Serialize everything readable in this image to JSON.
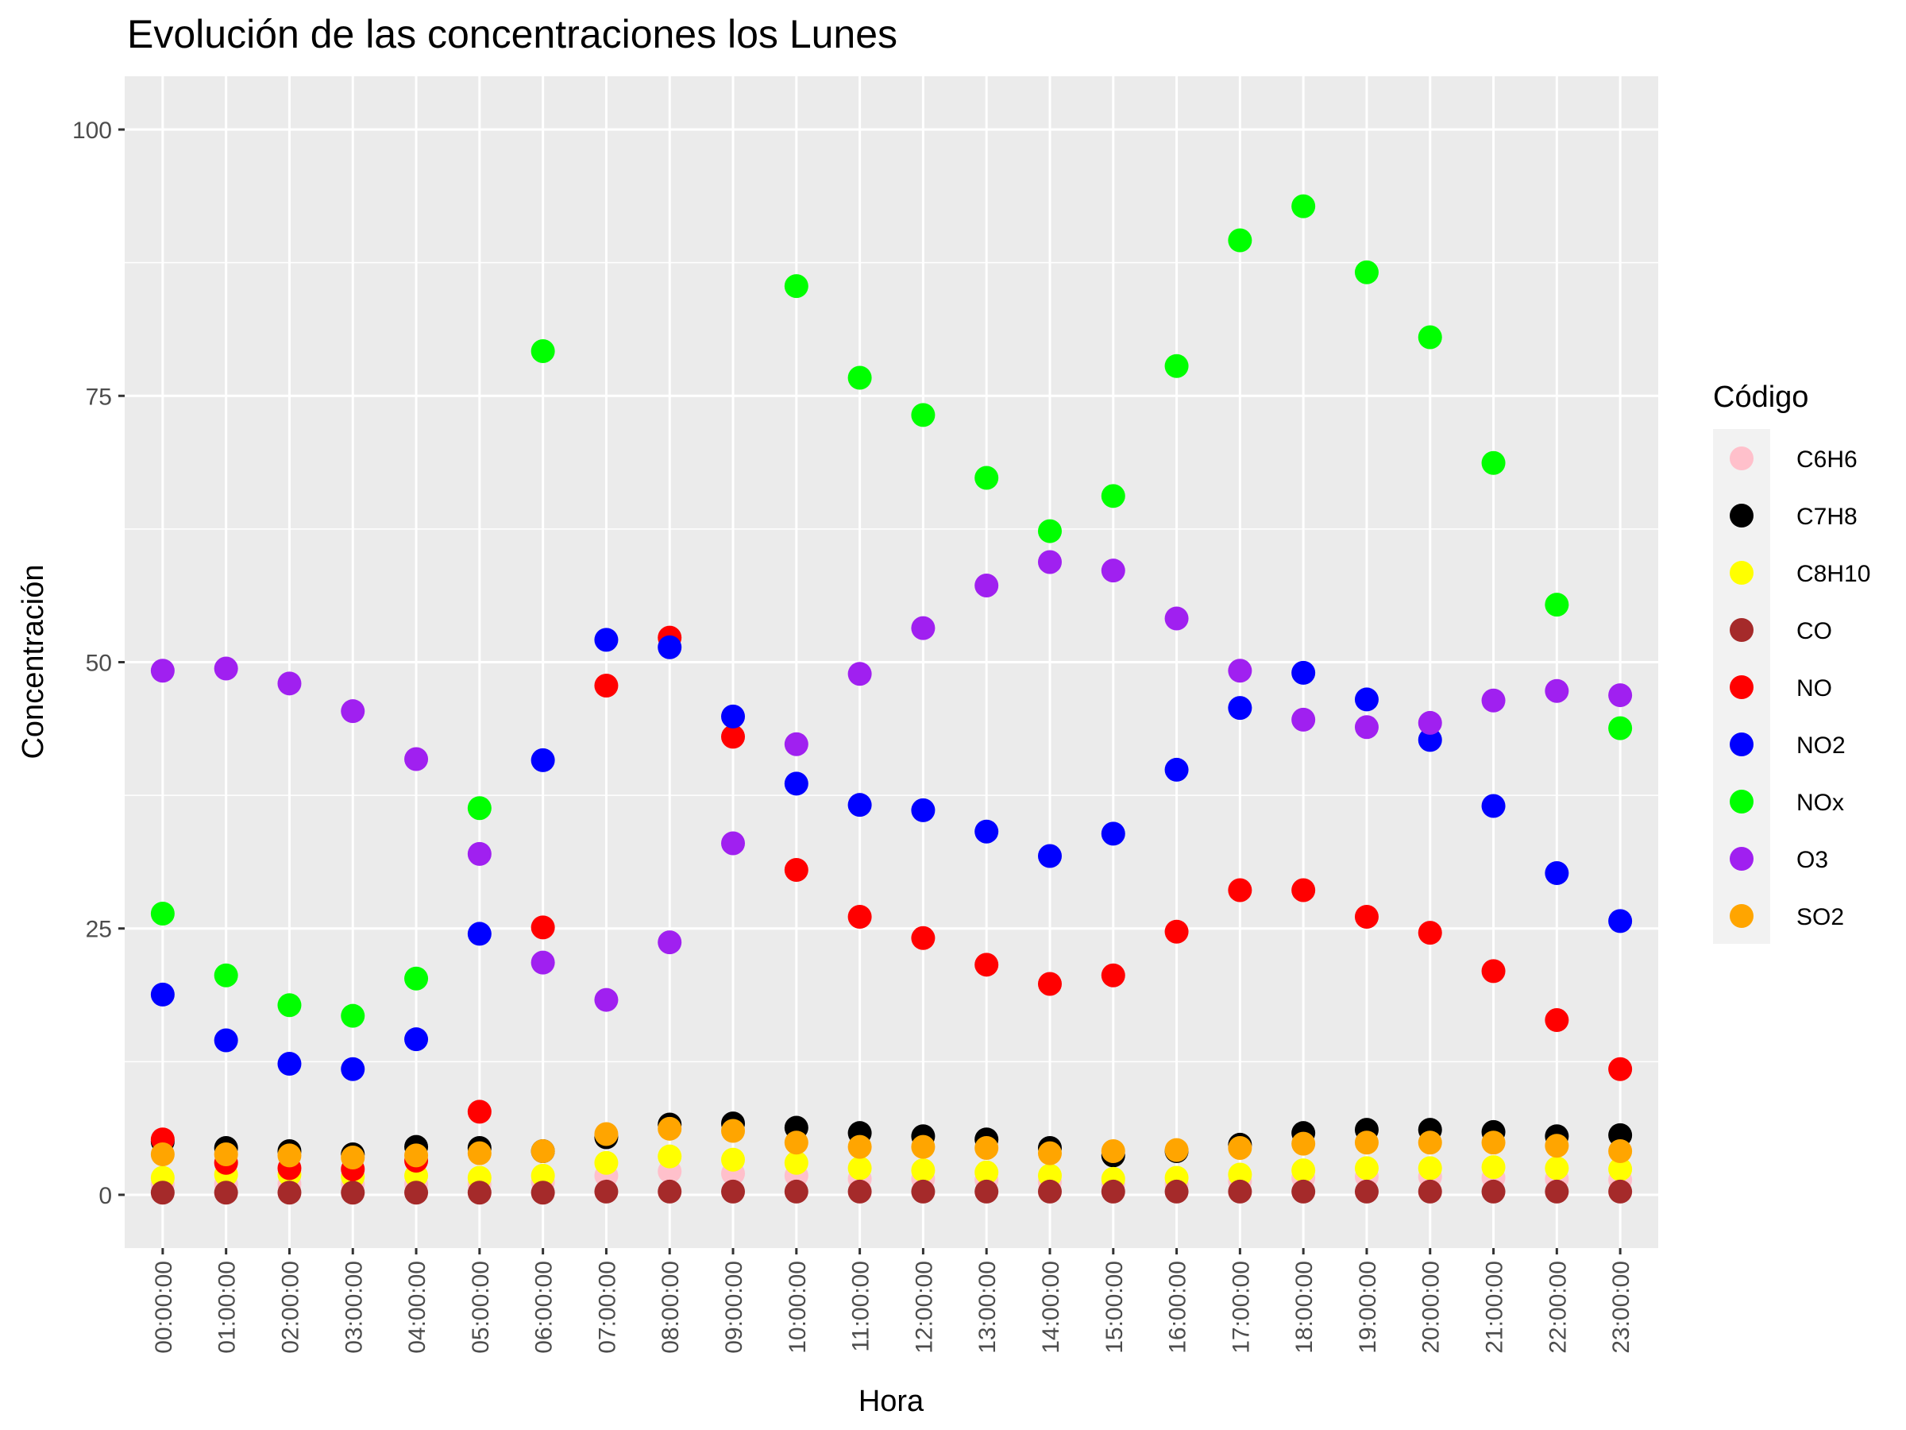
{
  "chart_data": {
    "type": "scatter",
    "title": "Evolución de las concentraciones los Lunes",
    "xlabel": "Hora",
    "ylabel": "Concentración",
    "categories": [
      "00:00:00",
      "01:00:00",
      "02:00:00",
      "03:00:00",
      "04:00:00",
      "05:00:00",
      "06:00:00",
      "07:00:00",
      "08:00:00",
      "09:00:00",
      "10:00:00",
      "11:00:00",
      "12:00:00",
      "13:00:00",
      "14:00:00",
      "15:00:00",
      "16:00:00",
      "17:00:00",
      "18:00:00",
      "19:00:00",
      "20:00:00",
      "21:00:00",
      "22:00:00",
      "23:00:00"
    ],
    "yticks": [
      0,
      25,
      50,
      75,
      100
    ],
    "ylim": [
      -5,
      105
    ],
    "grid": true,
    "legend_title": "Código",
    "legend_position": "right",
    "series": [
      {
        "name": "C6H6",
        "color": "#FFC0CB",
        "values": [
          1.0,
          1.0,
          1.0,
          1.0,
          1.0,
          1.0,
          1.2,
          1.8,
          2.2,
          2.0,
          1.8,
          1.5,
          1.5,
          1.4,
          1.2,
          1.0,
          1.0,
          1.3,
          1.6,
          1.7,
          1.7,
          1.6,
          1.5,
          1.4
        ]
      },
      {
        "name": "C7H8",
        "color": "#000000",
        "values": [
          5.0,
          4.4,
          4.1,
          3.8,
          4.5,
          4.4,
          4.1,
          5.4,
          6.6,
          6.7,
          6.3,
          5.8,
          5.5,
          5.2,
          4.4,
          3.7,
          4.1,
          4.7,
          5.8,
          6.1,
          6.1,
          5.9,
          5.5,
          5.6
        ]
      },
      {
        "name": "C8H10",
        "color": "#FFFF00",
        "values": [
          1.6,
          1.9,
          1.9,
          1.7,
          1.8,
          1.6,
          1.8,
          3.0,
          3.6,
          3.3,
          3.0,
          2.5,
          2.3,
          2.1,
          1.8,
          1.5,
          1.6,
          1.9,
          2.3,
          2.5,
          2.5,
          2.6,
          2.5,
          2.4
        ]
      },
      {
        "name": "CO",
        "color": "#A52A2A",
        "values": [
          0.2,
          0.2,
          0.2,
          0.2,
          0.2,
          0.2,
          0.2,
          0.3,
          0.3,
          0.3,
          0.3,
          0.3,
          0.3,
          0.3,
          0.3,
          0.3,
          0.3,
          0.3,
          0.3,
          0.3,
          0.3,
          0.3,
          0.3,
          0.3
        ]
      },
      {
        "name": "NO",
        "color": "#FF0000",
        "values": [
          5.2,
          3.0,
          2.5,
          2.4,
          3.2,
          7.8,
          25.1,
          47.8,
          52.3,
          43.0,
          30.5,
          26.1,
          24.1,
          21.6,
          19.8,
          20.6,
          24.7,
          28.6,
          28.6,
          26.1,
          24.6,
          21.0,
          16.4,
          11.8
        ]
      },
      {
        "name": "NO2",
        "color": "#0000FF",
        "values": [
          18.8,
          14.5,
          12.3,
          11.8,
          14.6,
          24.5,
          40.8,
          52.1,
          51.4,
          44.9,
          38.6,
          36.6,
          36.1,
          34.1,
          31.8,
          33.9,
          39.9,
          45.7,
          49.0,
          46.5,
          42.7,
          36.5,
          30.2,
          25.7
        ]
      },
      {
        "name": "NOx",
        "color": "#00FF00",
        "values": [
          26.4,
          20.6,
          17.8,
          16.8,
          20.3,
          36.3,
          79.2,
          null,
          null,
          null,
          85.3,
          76.7,
          73.2,
          67.3,
          62.3,
          65.6,
          77.8,
          89.6,
          92.8,
          86.6,
          80.5,
          68.7,
          55.4,
          43.8
        ]
      },
      {
        "name": "O3",
        "color": "#A020F0",
        "values": [
          49.2,
          49.4,
          48.0,
          45.4,
          40.9,
          32.0,
          21.8,
          18.3,
          23.7,
          33.0,
          42.3,
          48.9,
          53.2,
          57.2,
          59.4,
          58.6,
          54.1,
          49.2,
          44.6,
          43.9,
          44.3,
          46.4,
          47.3,
          46.9
        ]
      },
      {
        "name": "SO2",
        "color": "#FFA500",
        "values": [
          3.8,
          3.8,
          3.7,
          3.5,
          3.7,
          3.9,
          4.1,
          5.7,
          6.2,
          6.0,
          4.9,
          4.5,
          4.5,
          4.4,
          3.9,
          4.1,
          4.2,
          4.4,
          4.8,
          4.9,
          4.9,
          4.9,
          4.6,
          4.1
        ]
      }
    ]
  }
}
